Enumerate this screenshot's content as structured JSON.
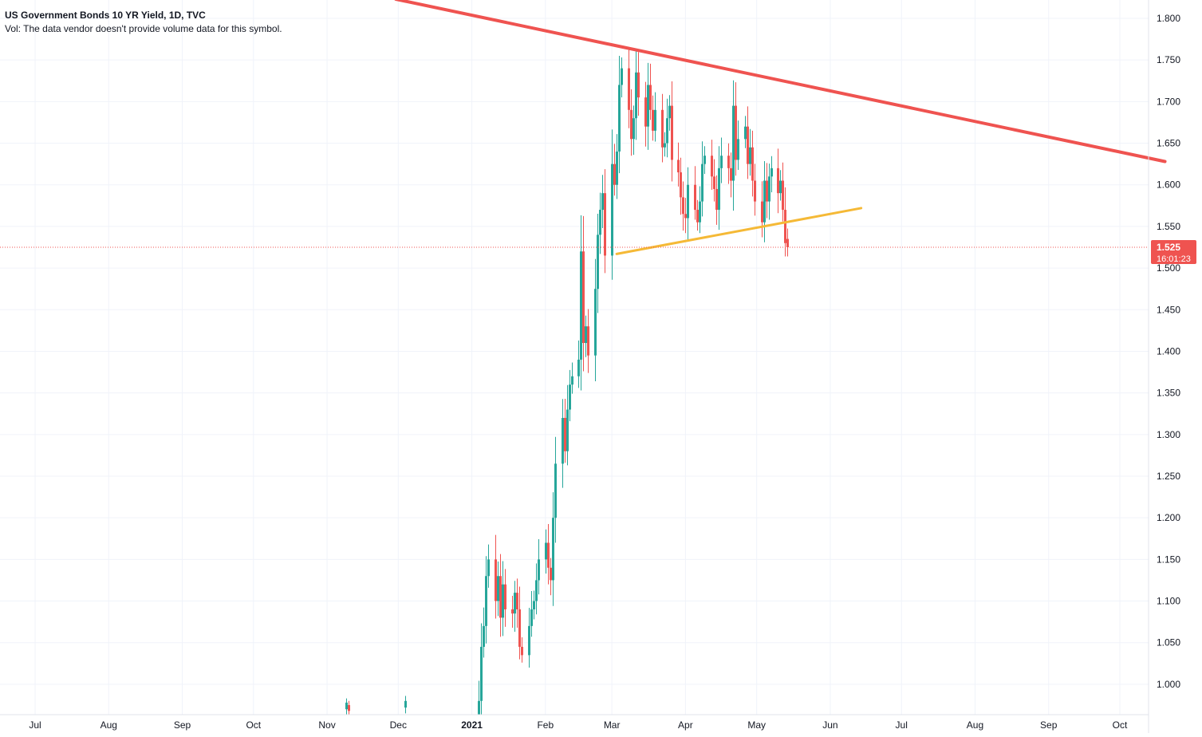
{
  "legend": {
    "title": "US Government Bonds 10 YR Yield, 1D, TVC",
    "vol_note": "Vol: The data vendor doesn't provide volume data for this symbol."
  },
  "price_label": {
    "price": "1.525",
    "countdown": "16:01:23"
  },
  "colors": {
    "up": "#26a69a",
    "down": "#ef5350",
    "resistance_line": "#ef5350",
    "neckline": "#f5b936",
    "price_label_bg": "#ef5350",
    "grid": "#f0f3fa",
    "axis_text": "#131722"
  },
  "chart_data": {
    "type": "candlestick",
    "title": "US Government Bonds 10 YR Yield, 1D, TVC",
    "y_ticks": [
      "1.000",
      "1.050",
      "1.100",
      "1.150",
      "1.200",
      "1.250",
      "1.300",
      "1.350",
      "1.400",
      "1.450",
      "1.500",
      "1.550",
      "1.600",
      "1.650",
      "1.700",
      "1.750",
      "1.800"
    ],
    "x_ticks": [
      "Jul",
      "Aug",
      "Sep",
      "Oct",
      "Nov",
      "Dec",
      "2021",
      "Feb",
      "Mar",
      "Apr",
      "May",
      "Jun",
      "Jul",
      "Aug",
      "Sep",
      "Oct"
    ],
    "x_range": [
      "2020-06-20",
      "2021-10-16"
    ],
    "y_range": [
      0.975,
      1.82
    ],
    "last_price": 1.525,
    "grid": true,
    "candles_before_2021": [
      {
        "date": "2020-11-09",
        "open": 0.97,
        "high": 0.983,
        "low": 0.96,
        "close": 0.978
      },
      {
        "date": "2020-11-10",
        "open": 0.975,
        "high": 0.98,
        "low": 0.962,
        "close": 0.968
      },
      {
        "date": "2020-12-04",
        "open": 0.972,
        "high": 0.986,
        "low": 0.965,
        "close": 0.98
      }
    ],
    "candles_2021": [
      [
        0.915,
        0.98
      ],
      [
        0.98,
        1.045
      ],
      [
        1.045,
        1.07
      ],
      [
        1.07,
        1.13
      ],
      [
        1.13,
        1.15
      ],
      [
        1.15,
        1.1
      ],
      [
        1.1,
        1.13
      ],
      [
        1.13,
        1.08
      ],
      [
        1.08,
        1.12
      ],
      [
        1.12,
        1.09
      ],
      [
        1.09,
        1.085
      ],
      [
        1.085,
        1.11
      ],
      [
        1.11,
        1.09
      ],
      [
        1.09,
        1.045
      ],
      [
        1.045,
        1.035
      ],
      [
        1.035,
        1.07
      ],
      [
        1.07,
        1.09
      ],
      [
        1.09,
        1.1
      ],
      [
        1.1,
        1.125
      ],
      [
        1.125,
        1.15
      ],
      [
        1.15,
        1.17
      ],
      [
        1.17,
        1.14
      ],
      [
        1.14,
        1.125
      ],
      [
        1.125,
        1.2
      ],
      [
        1.2,
        1.265
      ],
      [
        1.265,
        1.32
      ],
      [
        1.32,
        1.28
      ],
      [
        1.28,
        1.33
      ],
      [
        1.33,
        1.36
      ],
      [
        1.36,
        1.37
      ],
      [
        1.37,
        1.39
      ],
      [
        1.39,
        1.52
      ],
      [
        1.52,
        1.41
      ],
      [
        1.41,
        1.43
      ],
      [
        1.43,
        1.395
      ],
      [
        1.395,
        1.475
      ],
      [
        1.475,
        1.54
      ],
      [
        1.54,
        1.57
      ],
      [
        1.57,
        1.59
      ],
      [
        1.59,
        1.515
      ],
      [
        1.515,
        1.625
      ],
      [
        1.625,
        1.6
      ],
      [
        1.6,
        1.64
      ],
      [
        1.64,
        1.72
      ],
      [
        1.72,
        1.74
      ],
      [
        1.74,
        1.69
      ],
      [
        1.69,
        1.655
      ],
      [
        1.655,
        1.68
      ],
      [
        1.68,
        1.735
      ],
      [
        1.735,
        1.705
      ],
      [
        1.705,
        1.67
      ],
      [
        1.67,
        1.72
      ],
      [
        1.72,
        1.69
      ],
      [
        1.69,
        1.665
      ],
      [
        1.665,
        1.69
      ],
      [
        1.69,
        1.645
      ],
      [
        1.645,
        1.65
      ],
      [
        1.65,
        1.68
      ],
      [
        1.68,
        1.695
      ],
      [
        1.695,
        1.63
      ],
      [
        1.63,
        1.615
      ],
      [
        1.615,
        1.585
      ],
      [
        1.585,
        1.565
      ],
      [
        1.565,
        1.56
      ],
      [
        1.56,
        1.6
      ],
      [
        1.6,
        1.57
      ],
      [
        1.57,
        1.555
      ],
      [
        1.555,
        1.58
      ],
      [
        1.58,
        1.625
      ],
      [
        1.625,
        1.635
      ],
      [
        1.635,
        1.61
      ],
      [
        1.61,
        1.595
      ],
      [
        1.595,
        1.57
      ],
      [
        1.57,
        1.62
      ],
      [
        1.62,
        1.635
      ],
      [
        1.635,
        1.62
      ],
      [
        1.62,
        1.605
      ],
      [
        1.605,
        1.695
      ],
      [
        1.695,
        1.63
      ],
      [
        1.63,
        1.655
      ],
      [
        1.655,
        1.67
      ],
      [
        1.67,
        1.625
      ],
      [
        1.625,
        1.645
      ],
      [
        1.645,
        1.605
      ],
      [
        1.605,
        1.58
      ],
      [
        1.58,
        1.555
      ],
      [
        1.555,
        1.605
      ],
      [
        1.605,
        1.58
      ],
      [
        1.58,
        1.61
      ],
      [
        1.61,
        1.62
      ],
      [
        1.62,
        1.59
      ],
      [
        1.59,
        1.605
      ],
      [
        1.605,
        1.57
      ],
      [
        1.57,
        1.53
      ],
      [
        1.535,
        1.525
      ]
    ],
    "trendlines": [
      {
        "name": "resistance",
        "from": [
          "2020-11-30",
          1.823
        ],
        "to": [
          "2021-10-20",
          1.628
        ]
      },
      {
        "name": "neckline",
        "from": [
          "2021-03-03",
          1.517
        ],
        "to": [
          "2021-06-14",
          1.572
        ]
      }
    ]
  }
}
